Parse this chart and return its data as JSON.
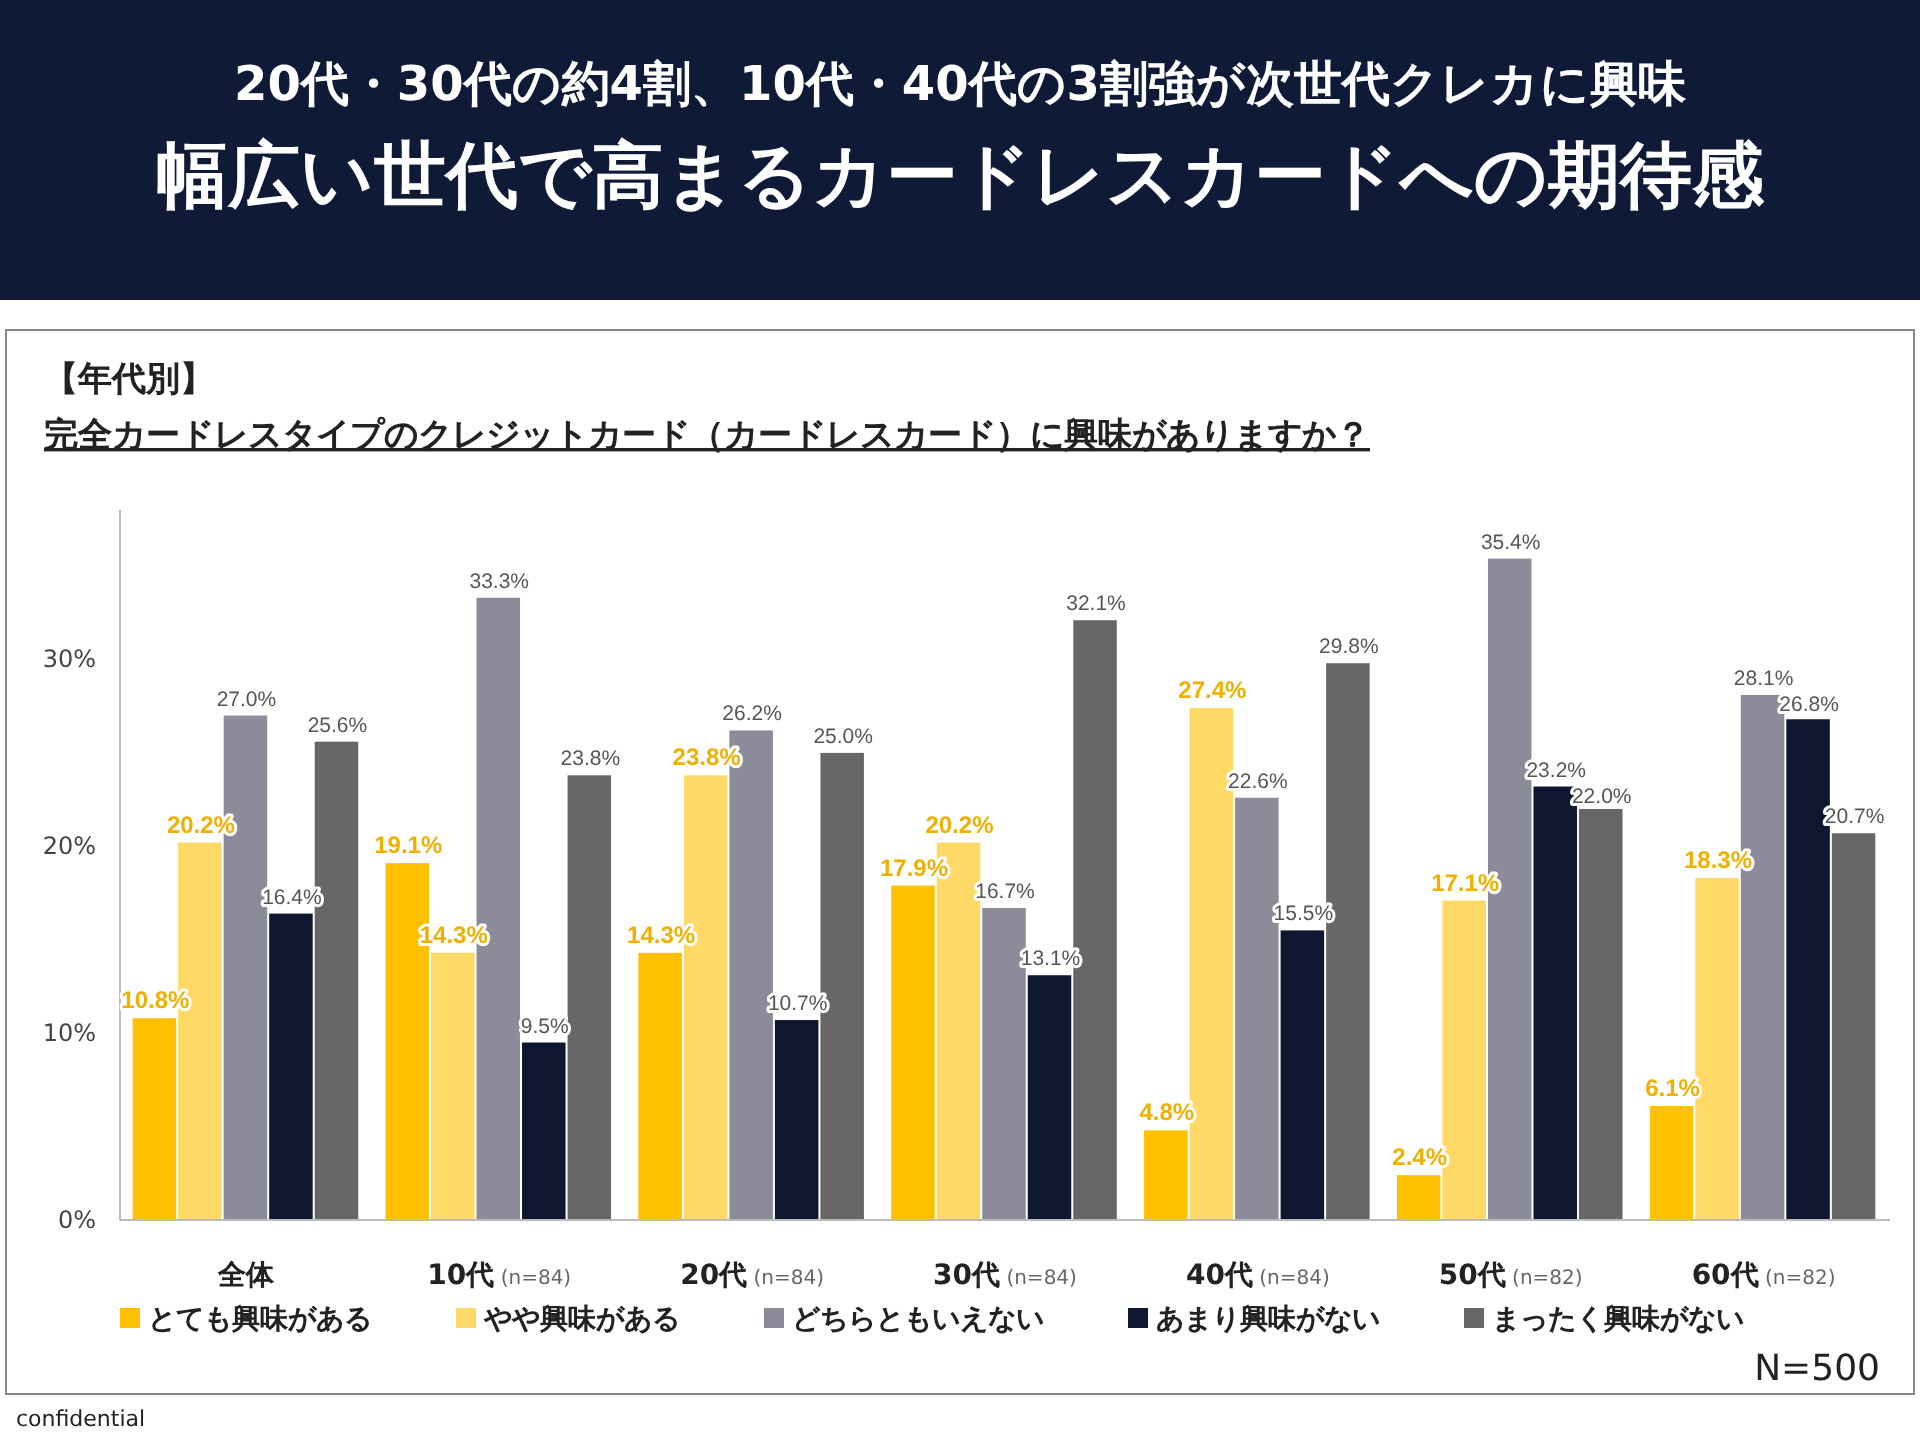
{
  "chart_data": {
    "type": "bar",
    "subtitle": "20代・30代の約4割、10代・40代の3割強が次世代クレカに興味",
    "title": "幅広い世代で高まるカードレスカードへの期待感",
    "annotations": [
      "【年代別】",
      "完全カードレスタイプのクレジットカード（カードレスカード）に興味がありますか？",
      "N=500",
      "confidential"
    ],
    "categories": [
      "全体",
      "10代 (n=84)",
      "20代 (n=84)",
      "30代 (n=84)",
      "40代 (n=84)",
      "50代 (n=82)",
      "60代 (n=82)"
    ],
    "series": [
      {
        "name": "とても興味がある",
        "color": "#ffc000",
        "values": [
          10.8,
          19.1,
          14.3,
          17.9,
          4.8,
          2.4,
          6.1
        ],
        "value_labels": [
          "10.8%",
          "19.1%",
          "14.3%",
          "17.9%",
          "4.8%",
          "2.4%",
          "6.1%"
        ]
      },
      {
        "name": "やや興味がある",
        "color": "#ffd966",
        "values": [
          20.2,
          14.3,
          23.8,
          20.2,
          27.4,
          17.1,
          18.3
        ],
        "value_labels": [
          "20.2%",
          "14.3%",
          "23.8%",
          "20.2%",
          "27.4%",
          "17.1%",
          "18.3%"
        ]
      },
      {
        "name": "どちらともいえない",
        "color": "#8b8b99",
        "values": [
          27.0,
          33.3,
          26.2,
          16.7,
          22.6,
          35.4,
          28.1
        ],
        "value_labels": [
          "27.0%",
          "33.3%",
          "26.2%",
          "16.7%",
          "22.6%",
          "35.4%",
          "28.1%"
        ]
      },
      {
        "name": "あまり興味がない",
        "color": "#0f1730",
        "values": [
          16.4,
          9.5,
          10.7,
          13.1,
          15.5,
          23.2,
          26.8
        ],
        "value_labels": [
          "16.4%",
          "9.5%",
          "10.7%",
          "13.1%",
          "15.5%",
          "23.2%",
          "26.8%"
        ]
      },
      {
        "name": "まったく興味がない",
        "color": "#676767",
        "values": [
          25.6,
          23.8,
          25.0,
          32.1,
          29.8,
          22.0,
          20.7
        ],
        "value_labels": [
          "25.6%",
          "23.8%",
          "25.0%",
          "32.1%",
          "29.8%",
          "22.0%",
          "20.7%"
        ]
      }
    ],
    "ylim": [
      0,
      38
    ],
    "yticks": [
      {
        "value": 0,
        "label": "0%"
      },
      {
        "value": 10,
        "label": "10%"
      },
      {
        "value": 20,
        "label": "20%"
      },
      {
        "value": 30,
        "label": "30%"
      }
    ],
    "grid": false,
    "legend": "bottom"
  }
}
